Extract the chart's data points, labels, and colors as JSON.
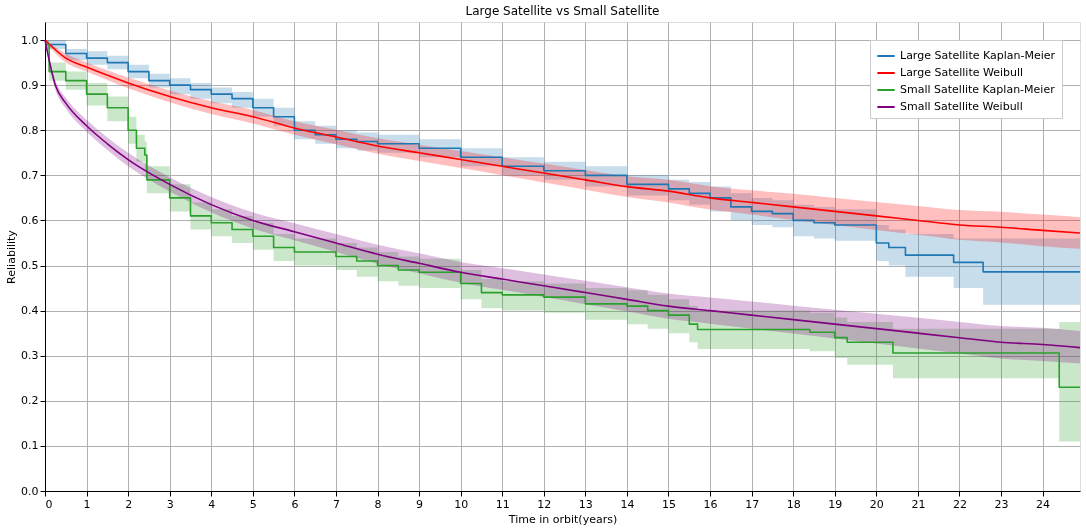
{
  "chart_data": {
    "type": "line",
    "title": "Large Satellite vs Small Satellite",
    "xlabel": "Time in orbit(years)",
    "ylabel": "Reliability",
    "xlim": [
      0,
      24.9
    ],
    "ylim": [
      0,
      1.04
    ],
    "xticks": [
      0,
      1,
      2,
      3,
      4,
      5,
      6,
      7,
      8,
      9,
      10,
      11,
      12,
      13,
      14,
      15,
      16,
      17,
      18,
      19,
      20,
      21,
      22,
      23,
      24
    ],
    "yticks": [
      {
        "value": 0,
        "label": "0.0"
      },
      0.1,
      0.2,
      0.3,
      0.4,
      0.5,
      0.6,
      0.7,
      0.8,
      0.9,
      {
        "value": 1,
        "label": "1.0"
      }
    ],
    "grid": true,
    "legend": "top right",
    "series": [
      {
        "name": "Large Satellite Kaplan-Meier",
        "type": "step",
        "color": "#1f77b4",
        "x": [
          0,
          0.5,
          1,
          1.5,
          2,
          2.5,
          3,
          3.5,
          4,
          4.5,
          5,
          5.5,
          6,
          6.5,
          7,
          7.5,
          8,
          9,
          10,
          11,
          12,
          13,
          14,
          15,
          15.5,
          16,
          16.5,
          17,
          17.5,
          18,
          18.5,
          19,
          19.7,
          20,
          20.3,
          20.7,
          21.86,
          22.57,
          24.9
        ],
        "values": [
          0.99,
          0.97,
          0.96,
          0.95,
          0.93,
          0.91,
          0.9,
          0.89,
          0.88,
          0.87,
          0.85,
          0.83,
          0.8,
          0.79,
          0.78,
          0.775,
          0.77,
          0.76,
          0.74,
          0.72,
          0.71,
          0.7,
          0.68,
          0.67,
          0.66,
          0.65,
          0.63,
          0.62,
          0.615,
          0.6,
          0.595,
          0.59,
          0.59,
          0.55,
          0.54,
          0.523,
          0.507,
          0.486,
          0.486
        ],
        "lower": [
          0.98,
          0.955,
          0.945,
          0.935,
          0.915,
          0.895,
          0.88,
          0.87,
          0.86,
          0.85,
          0.83,
          0.81,
          0.78,
          0.77,
          0.76,
          0.755,
          0.75,
          0.74,
          0.72,
          0.7,
          0.69,
          0.675,
          0.655,
          0.645,
          0.635,
          0.62,
          0.6,
          0.59,
          0.585,
          0.565,
          0.56,
          0.555,
          0.555,
          0.51,
          0.5,
          0.475,
          0.45,
          0.413,
          0.413
        ],
        "upper": [
          1.0,
          0.98,
          0.975,
          0.965,
          0.945,
          0.925,
          0.915,
          0.905,
          0.895,
          0.885,
          0.87,
          0.85,
          0.82,
          0.81,
          0.8,
          0.795,
          0.79,
          0.78,
          0.76,
          0.74,
          0.73,
          0.72,
          0.7,
          0.69,
          0.685,
          0.675,
          0.66,
          0.65,
          0.645,
          0.635,
          0.63,
          0.625,
          0.625,
          0.59,
          0.58,
          0.57,
          0.56,
          0.56,
          0.56
        ]
      },
      {
        "name": "Large Satellite Weibull",
        "color": "#ff0000",
        "x": [
          0,
          0.5,
          1,
          2,
          3,
          4,
          5,
          6,
          7,
          8,
          9,
          10,
          11,
          12,
          13,
          14,
          15,
          16,
          17,
          18,
          19,
          20,
          21,
          22,
          23,
          24,
          24.9
        ],
        "values": [
          1.0,
          0.96,
          0.94,
          0.905,
          0.875,
          0.85,
          0.83,
          0.805,
          0.785,
          0.765,
          0.75,
          0.735,
          0.72,
          0.705,
          0.69,
          0.675,
          0.665,
          0.65,
          0.64,
          0.63,
          0.62,
          0.61,
          0.6,
          0.59,
          0.585,
          0.578,
          0.572
        ],
        "lower": [
          0.995,
          0.95,
          0.93,
          0.893,
          0.862,
          0.836,
          0.815,
          0.79,
          0.769,
          0.748,
          0.732,
          0.716,
          0.7,
          0.684,
          0.668,
          0.652,
          0.64,
          0.624,
          0.613,
          0.601,
          0.59,
          0.579,
          0.568,
          0.557,
          0.551,
          0.543,
          0.537
        ],
        "upper": [
          1.0,
          0.97,
          0.95,
          0.917,
          0.888,
          0.864,
          0.845,
          0.82,
          0.801,
          0.782,
          0.768,
          0.754,
          0.74,
          0.726,
          0.712,
          0.698,
          0.69,
          0.676,
          0.667,
          0.659,
          0.65,
          0.641,
          0.632,
          0.623,
          0.619,
          0.613,
          0.607
        ]
      },
      {
        "name": "Small Satellite Kaplan-Meier",
        "type": "step",
        "color": "#2ca02c",
        "x": [
          0,
          0.1,
          0.5,
          1,
          1.5,
          2,
          2.2,
          2.4,
          2.45,
          3,
          3.5,
          4,
          4.5,
          5,
          5.5,
          6,
          7,
          7.5,
          8,
          8.5,
          9,
          10,
          10.5,
          11,
          12,
          13,
          14,
          14.5,
          15,
          15.5,
          15.7,
          18.4,
          19.0,
          19.3,
          20.4,
          24.4,
          24.9
        ],
        "values": [
          0.99,
          0.93,
          0.91,
          0.88,
          0.85,
          0.8,
          0.76,
          0.745,
          0.69,
          0.65,
          0.61,
          0.595,
          0.58,
          0.565,
          0.54,
          0.53,
          0.52,
          0.51,
          0.5,
          0.49,
          0.485,
          0.46,
          0.44,
          0.435,
          0.43,
          0.415,
          0.41,
          0.4,
          0.39,
          0.37,
          0.358,
          0.352,
          0.34,
          0.33,
          0.306,
          0.23,
          0.23
        ],
        "lower": [
          0.98,
          0.91,
          0.89,
          0.855,
          0.82,
          0.77,
          0.73,
          0.71,
          0.66,
          0.62,
          0.58,
          0.565,
          0.55,
          0.535,
          0.51,
          0.5,
          0.49,
          0.475,
          0.465,
          0.455,
          0.45,
          0.425,
          0.405,
          0.4,
          0.395,
          0.38,
          0.37,
          0.36,
          0.35,
          0.33,
          0.315,
          0.31,
          0.295,
          0.28,
          0.25,
          0.11,
          0.11
        ],
        "upper": [
          1.0,
          0.95,
          0.93,
          0.905,
          0.875,
          0.83,
          0.79,
          0.775,
          0.72,
          0.68,
          0.64,
          0.625,
          0.61,
          0.595,
          0.57,
          0.56,
          0.55,
          0.54,
          0.53,
          0.52,
          0.515,
          0.49,
          0.47,
          0.465,
          0.46,
          0.45,
          0.445,
          0.435,
          0.425,
          0.41,
          0.4,
          0.395,
          0.385,
          0.375,
          0.36,
          0.375,
          0.375
        ]
      },
      {
        "name": "Small Satellite Weibull",
        "color": "#800080",
        "x": [
          0,
          0.25,
          0.5,
          1,
          1.5,
          2,
          3,
          4,
          5,
          6,
          7,
          8,
          9,
          10,
          11,
          12,
          13,
          14,
          15,
          16,
          17,
          18,
          19,
          20,
          21,
          22,
          23,
          24,
          24.9
        ],
        "values": [
          1.0,
          0.9,
          0.86,
          0.81,
          0.77,
          0.735,
          0.68,
          0.635,
          0.6,
          0.575,
          0.55,
          0.525,
          0.505,
          0.485,
          0.47,
          0.455,
          0.44,
          0.425,
          0.41,
          0.4,
          0.39,
          0.38,
          0.37,
          0.36,
          0.35,
          0.34,
          0.33,
          0.325,
          0.318
        ],
        "lower": [
          0.995,
          0.89,
          0.848,
          0.797,
          0.756,
          0.72,
          0.664,
          0.618,
          0.582,
          0.556,
          0.53,
          0.504,
          0.483,
          0.462,
          0.446,
          0.43,
          0.414,
          0.398,
          0.382,
          0.371,
          0.36,
          0.349,
          0.338,
          0.327,
          0.316,
          0.305,
          0.294,
          0.288,
          0.283
        ],
        "upper": [
          1.0,
          0.91,
          0.872,
          0.823,
          0.784,
          0.75,
          0.696,
          0.652,
          0.618,
          0.594,
          0.57,
          0.546,
          0.527,
          0.508,
          0.494,
          0.48,
          0.466,
          0.452,
          0.438,
          0.429,
          0.42,
          0.411,
          0.402,
          0.393,
          0.384,
          0.375,
          0.366,
          0.362,
          0.355
        ]
      }
    ]
  }
}
